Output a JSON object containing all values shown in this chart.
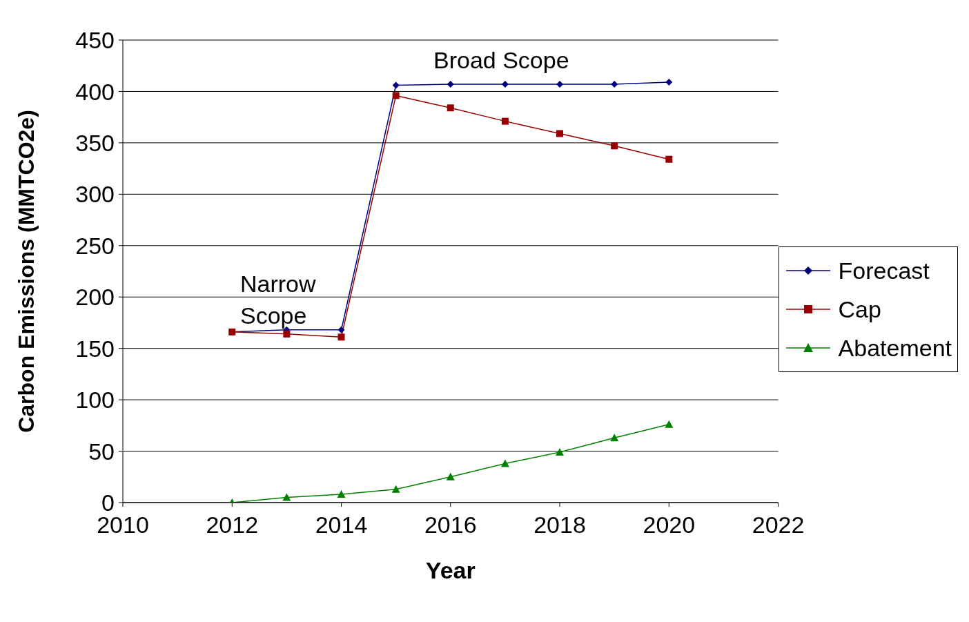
{
  "chart_data": {
    "type": "line",
    "xlabel": "Year",
    "ylabel": "Carbon Emissions (MMTCO2e)",
    "x": [
      2012,
      2013,
      2014,
      2015,
      2016,
      2017,
      2018,
      2019,
      2020
    ],
    "series": [
      {
        "name": "Forecast",
        "color": "#000080",
        "marker": "diamond",
        "values": [
          166,
          168,
          168,
          406,
          407,
          407,
          407,
          407,
          409
        ]
      },
      {
        "name": "Cap",
        "color": "#990000",
        "marker": "square",
        "values": [
          166,
          164,
          161,
          396,
          384,
          371,
          359,
          347,
          334
        ]
      },
      {
        "name": "Abatement",
        "color": "#008000",
        "marker": "triangle",
        "values": [
          0,
          5,
          8,
          13,
          25,
          38,
          49,
          63,
          76
        ]
      }
    ],
    "xlim": [
      2010,
      2022
    ],
    "xticks": [
      2010,
      2012,
      2014,
      2016,
      2018,
      2020,
      2022
    ],
    "ylim": [
      0,
      450
    ],
    "yticks": [
      0,
      50,
      100,
      150,
      200,
      250,
      300,
      350,
      400,
      450
    ],
    "grid": "y",
    "legend": "right",
    "line_style": "solid",
    "annotations": [
      "Broad Scope",
      "Narrow Scope"
    ]
  }
}
